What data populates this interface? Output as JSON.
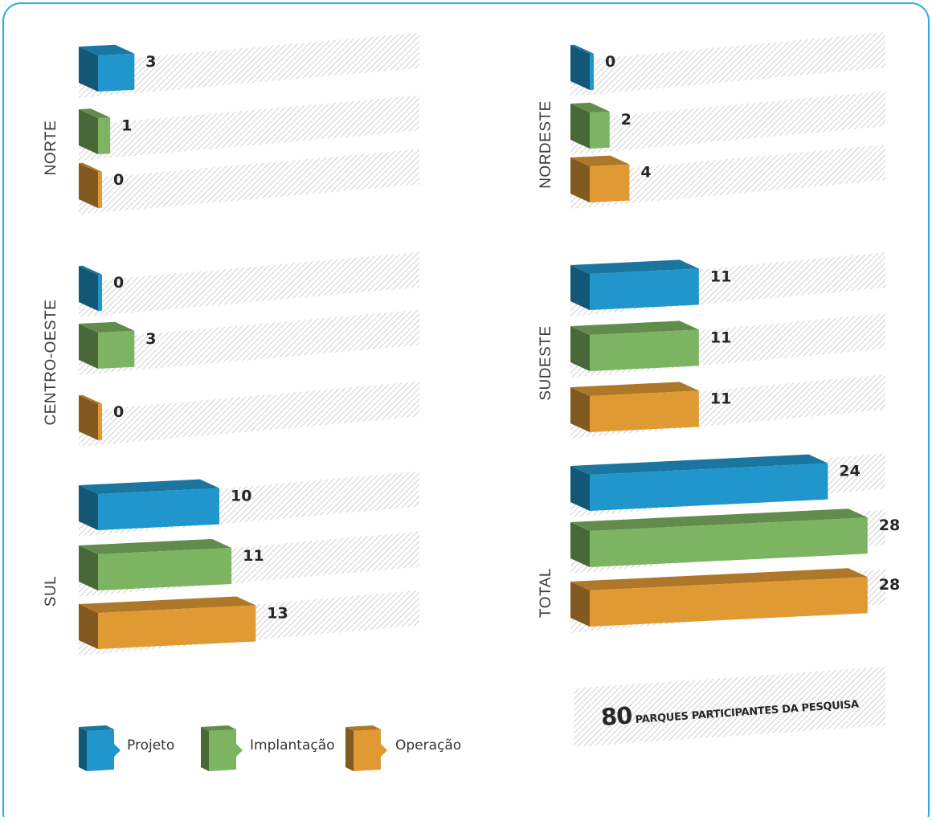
{
  "chart_data": {
    "type": "bar",
    "categories": [
      "Projeto",
      "Implantação",
      "Operação"
    ],
    "colors": {
      "Projeto": "#2196cc",
      "Implantação": "#7cb461",
      "Operação": "#e09a34"
    },
    "regions": [
      {
        "name": "NORTE",
        "values": [
          3,
          1,
          0
        ]
      },
      {
        "name": "CENTRO-OESTE",
        "values": [
          0,
          3,
          0
        ]
      },
      {
        "name": "SUL",
        "values": [
          10,
          11,
          13
        ]
      },
      {
        "name": "NORDESTE",
        "values": [
          0,
          2,
          4
        ]
      },
      {
        "name": "SUDESTE",
        "values": [
          11,
          11,
          11
        ]
      },
      {
        "name": "TOTAL",
        "values": [
          24,
          28,
          28
        ]
      }
    ],
    "legend": [
      "Projeto",
      "Implantação",
      "Operação"
    ],
    "total_caption": {
      "number": "80",
      "text": "PARQUES PARTICIPANTES DA PESQUISA"
    }
  }
}
